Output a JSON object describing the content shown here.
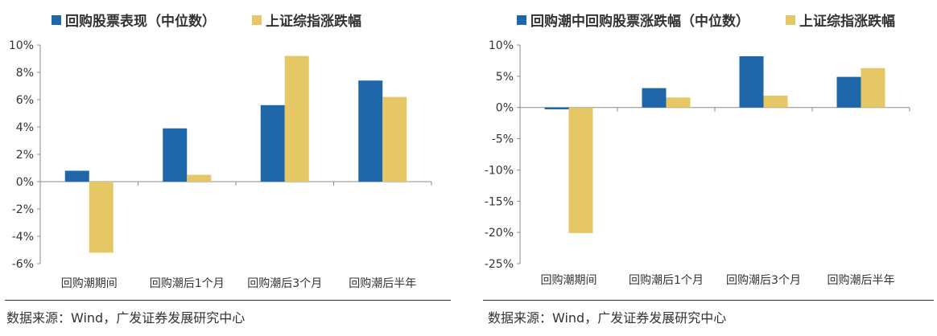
{
  "colors": {
    "series_a": "#1f67a8",
    "series_b": "#e6c766"
  },
  "source_text": "数据来源：Wind，广发证券发展研究中心",
  "chart_data": [
    {
      "type": "bar",
      "categories": [
        "回购潮期间",
        "回购潮后1个月",
        "回购潮后3个月",
        "回购潮后半年"
      ],
      "series": [
        {
          "name": "回购股票表现（中位数）",
          "values": [
            0.8,
            3.9,
            5.6,
            7.4
          ]
        },
        {
          "name": "上证综指涨跌幅",
          "values": [
            -5.2,
            0.5,
            9.2,
            6.2
          ]
        }
      ],
      "yticks": [
        "10%",
        "8%",
        "6%",
        "4%",
        "2%",
        "0%",
        "-2%",
        "-4%",
        "-6%"
      ],
      "ylim": [
        -6,
        10
      ],
      "unit": "%",
      "grid": false,
      "legend": "top"
    },
    {
      "type": "bar",
      "categories": [
        "回购潮期间",
        "回购潮后1个月",
        "回购潮后3个月",
        "回购潮后半年"
      ],
      "series": [
        {
          "name": "回购潮中回购股票涨跌幅（中位数）",
          "values": [
            -0.3,
            3.1,
            8.2,
            4.9
          ]
        },
        {
          "name": "上证综指涨跌幅",
          "values": [
            -20.1,
            1.6,
            1.9,
            6.3
          ]
        }
      ],
      "yticks": [
        "10%",
        "5%",
        "0%",
        "-5%",
        "-10%",
        "-15%",
        "-20%",
        "-25%"
      ],
      "ylim": [
        -25,
        10
      ],
      "unit": "%",
      "grid": false,
      "legend": "top"
    }
  ]
}
